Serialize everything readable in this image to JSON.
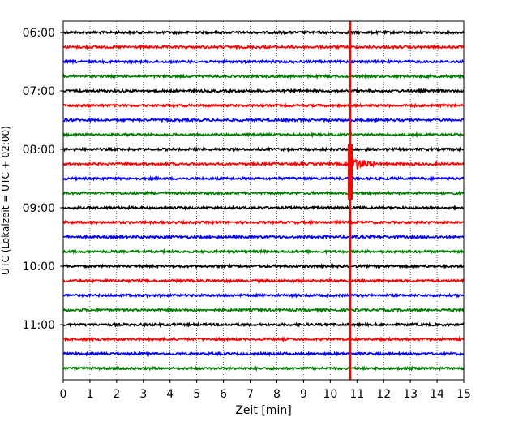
{
  "chart_data": {
    "type": "line",
    "title": "",
    "xlabel": "Zeit  [min]",
    "ylabel": "UTC (Lokalzeit = UTC + 02:00)",
    "xlim": [
      0,
      15
    ],
    "x_ticks": [
      0,
      1,
      2,
      3,
      4,
      5,
      6,
      7,
      8,
      9,
      10,
      11,
      12,
      13,
      14,
      15
    ],
    "y_ticks": [
      "06:00",
      "07:00",
      "08:00",
      "09:00",
      "10:00",
      "11:00"
    ],
    "trace_start_times": [
      "06:00",
      "06:15",
      "06:30",
      "06:45",
      "07:00",
      "07:15",
      "07:30",
      "07:45",
      "08:00",
      "08:15",
      "08:30",
      "08:45",
      "09:00",
      "09:15",
      "09:30",
      "09:45",
      "10:00",
      "10:15",
      "10:30",
      "10:45",
      "11:00",
      "11:15",
      "11:30",
      "11:45"
    ],
    "trace_minutes_per_line": 15,
    "trace_colors": [
      "#000000",
      "#ff0000",
      "#0000ff",
      "#008000"
    ],
    "grid": "vertical-dotted",
    "event_marker": {
      "x": 10.75,
      "color": "#ff0000"
    }
  }
}
